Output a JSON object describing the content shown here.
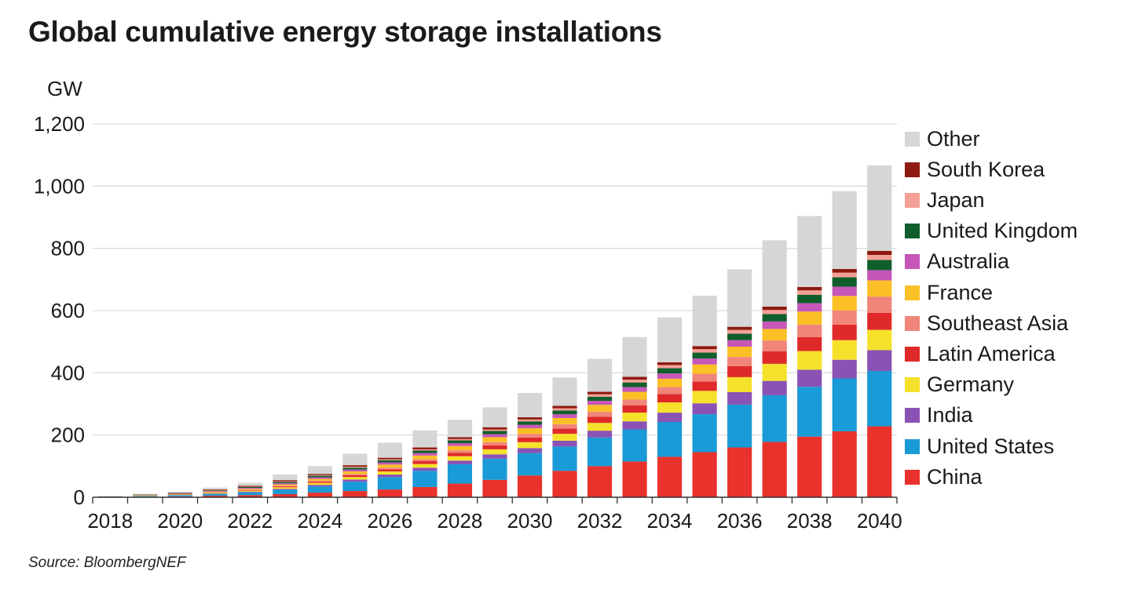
{
  "title": "Global cumulative energy storage installations",
  "unit_label": "GW",
  "source": "Source: BloombergNEF",
  "chart_data": {
    "type": "bar",
    "stacked": true,
    "title": "Global cumulative energy storage installations",
    "ylabel": "GW",
    "ylim": [
      0,
      1200
    ],
    "yticks": [
      0,
      200,
      400,
      600,
      800,
      1000,
      1200
    ],
    "ytick_labels": [
      "0",
      "200",
      "400",
      "600",
      "800",
      "1,000",
      "1,200"
    ],
    "grid": true,
    "legend_position": "right",
    "categories": [
      "2018",
      "2019",
      "2020",
      "2021",
      "2022",
      "2023",
      "2024",
      "2025",
      "2026",
      "2027",
      "2028",
      "2029",
      "2030",
      "2031",
      "2032",
      "2033",
      "2034",
      "2035",
      "2036",
      "2037",
      "2038",
      "2039",
      "2040"
    ],
    "xtick_labels": [
      "2018",
      "2020",
      "2022",
      "2024",
      "2026",
      "2028",
      "2030",
      "2032",
      "2034",
      "2036",
      "2038",
      "2040"
    ],
    "series": [
      {
        "name": "China",
        "color": "#e8322b",
        "values": [
          1,
          2,
          3,
          5,
          7,
          10,
          15,
          20,
          25,
          33,
          44,
          56,
          70,
          85,
          100,
          115,
          130,
          145,
          160,
          178,
          195,
          212,
          228
        ]
      },
      {
        "name": "United States",
        "color": "#1a9ad6",
        "values": [
          1,
          2,
          4,
          6,
          9,
          14,
          20,
          30,
          40,
          52,
          62,
          68,
          72,
          78,
          92,
          103,
          112,
          122,
          138,
          150,
          160,
          170,
          178
        ]
      },
      {
        "name": "India",
        "color": "#8a52b5",
        "values": [
          0,
          0,
          0,
          1,
          2,
          3,
          5,
          7,
          8,
          10,
          12,
          14,
          16,
          19,
          22,
          26,
          30,
          35,
          40,
          46,
          55,
          60,
          67
        ]
      },
      {
        "name": "Germany",
        "color": "#f5e12a",
        "values": [
          0,
          1,
          1,
          2,
          3,
          5,
          6,
          8,
          10,
          12,
          14,
          16,
          19,
          22,
          25,
          28,
          33,
          40,
          48,
          55,
          60,
          63,
          65
        ]
      },
      {
        "name": "Latin America",
        "color": "#e02a2a",
        "values": [
          0,
          0,
          1,
          1,
          2,
          3,
          4,
          6,
          7,
          9,
          11,
          13,
          15,
          17,
          20,
          23,
          27,
          30,
          35,
          40,
          45,
          50,
          55
        ]
      },
      {
        "name": "Southeast Asia",
        "color": "#f0857a",
        "values": [
          0,
          0,
          0,
          1,
          1,
          2,
          3,
          4,
          5,
          6,
          8,
          10,
          12,
          14,
          16,
          19,
          22,
          25,
          30,
          35,
          40,
          45,
          52
        ]
      },
      {
        "name": "France",
        "color": "#fbc026",
        "values": [
          0,
          1,
          1,
          2,
          3,
          4,
          6,
          8,
          10,
          12,
          14,
          16,
          18,
          20,
          22,
          25,
          27,
          30,
          33,
          37,
          42,
          47,
          52
        ]
      },
      {
        "name": "Australia",
        "color": "#c657b8",
        "values": [
          0,
          1,
          1,
          2,
          3,
          4,
          5,
          6,
          7,
          8,
          9,
          10,
          11,
          12,
          13,
          15,
          17,
          19,
          21,
          24,
          27,
          30,
          33
        ]
      },
      {
        "name": "United Kingdom",
        "color": "#0f5e2c",
        "values": [
          0,
          1,
          1,
          2,
          3,
          4,
          5,
          6,
          7,
          8,
          9,
          10,
          11,
          12,
          13,
          15,
          17,
          19,
          21,
          24,
          27,
          30,
          33
        ]
      },
      {
        "name": "Japan",
        "color": "#f4a096",
        "values": [
          0,
          0,
          0,
          1,
          1,
          2,
          2,
          3,
          3,
          4,
          4,
          5,
          6,
          7,
          8,
          9,
          10,
          11,
          12,
          13,
          14,
          15,
          16
        ]
      },
      {
        "name": "South Korea",
        "color": "#8e1a10",
        "values": [
          1,
          1,
          2,
          2,
          3,
          4,
          4,
          5,
          5,
          6,
          6,
          7,
          7,
          8,
          8,
          9,
          9,
          10,
          10,
          11,
          11,
          12,
          13
        ]
      },
      {
        "name": "Other",
        "color": "#d6d6d6",
        "values": [
          1,
          2,
          4,
          6,
          10,
          18,
          25,
          37,
          48,
          55,
          56,
          64,
          78,
          91,
          106,
          128,
          144,
          162,
          185,
          213,
          228,
          250,
          275
        ]
      }
    ]
  }
}
